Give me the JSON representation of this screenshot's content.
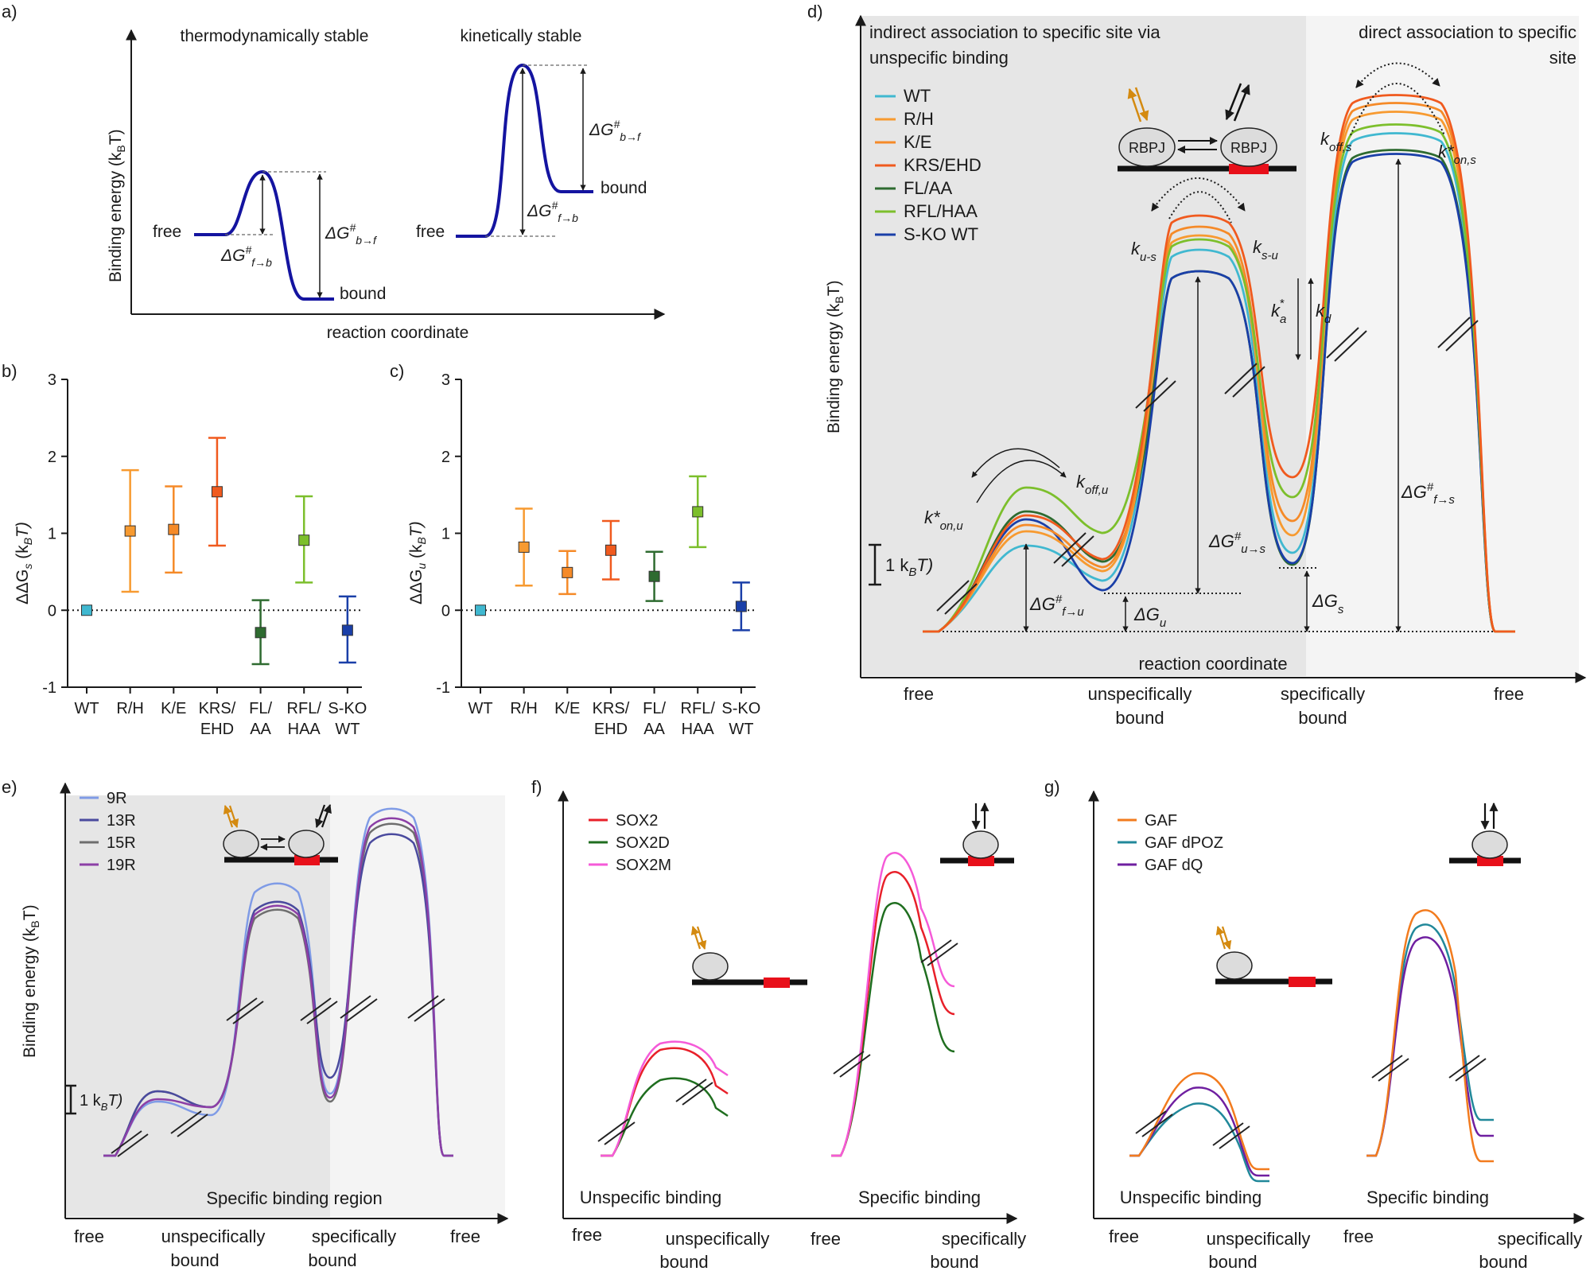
{
  "colors": {
    "navy": "#1414a0",
    "bg_gray": "#e6e6e6",
    "bg_light": "#f4f4f4",
    "WT": "#40b8d0",
    "R/H": "#f79a30",
    "K/E": "#f58a28",
    "KRS/EHD": "#f05a1e",
    "FL/AA": "#2e6b30",
    "RFL/HAA": "#7cbf2c",
    "S-KO WT": "#1a3fa8",
    "9R": "#7f9be6",
    "13R": "#4a4a9e",
    "15R": "#6e6e6e",
    "19R": "#8c3fa6",
    "SOX2": "#e8202a",
    "SOX2D": "#1f6e1f",
    "SOX2M": "#f55ad8",
    "GAF": "#f27b1e",
    "GAF dPOZ": "#21889a",
    "GAF dQ": "#6f1fa0"
  },
  "panel_a": {
    "letter": "a)",
    "ylabel": "Binding energy (k",
    "ylabel_sub": "B",
    "ylabel_end": "T)",
    "xlabel": "reaction coordinate",
    "left_title": "thermodynamically stable",
    "right_title": "kinetically stable",
    "free": "free",
    "bound": "bound",
    "dG_fb": "ΔG",
    "dG_sup": "#",
    "fb_sub": "f→b",
    "bf_sub": "b→f"
  },
  "chart_data": [
    {
      "panel": "b",
      "letter": "b)",
      "type": "scatter",
      "ylabel": "ΔΔG",
      "ylabel_sub": "s",
      "ylabel_end": " (k",
      "ylim": [
        -1,
        3
      ],
      "yticks": [
        "3",
        "2",
        "1",
        "0",
        "-1"
      ],
      "categories": [
        {
          "l1": "WT",
          "l2": ""
        },
        {
          "l1": "R/H",
          "l2": ""
        },
        {
          "l1": "K/E",
          "l2": ""
        },
        {
          "l1": "KRS/",
          "l2": "EHD"
        },
        {
          "l1": "FL/",
          "l2": "AA"
        },
        {
          "l1": "RFL/",
          "l2": "HAA"
        },
        {
          "l1": "S-KO",
          "l2": "WT"
        }
      ],
      "keys": [
        "WT",
        "R/H",
        "K/E",
        "KRS/EHD",
        "FL/AA",
        "RFL/HAA",
        "S-KO WT"
      ],
      "values": [
        0.0,
        1.03,
        1.05,
        1.54,
        -0.29,
        0.91,
        -0.26
      ],
      "err_low": [
        0.0,
        0.24,
        0.49,
        0.84,
        -0.7,
        0.36,
        -0.68
      ],
      "err_high": [
        0.0,
        1.82,
        1.61,
        2.24,
        0.13,
        1.48,
        0.18
      ]
    },
    {
      "panel": "c",
      "letter": "c)",
      "type": "scatter",
      "ylabel": "ΔΔG",
      "ylabel_sub": "u",
      "ylabel_end": " (k",
      "ylim": [
        -1,
        3
      ],
      "yticks": [
        "3",
        "2",
        "1",
        "0",
        "-1"
      ],
      "categories": [
        {
          "l1": "WT",
          "l2": ""
        },
        {
          "l1": "R/H",
          "l2": ""
        },
        {
          "l1": "K/E",
          "l2": ""
        },
        {
          "l1": "KRS/",
          "l2": "EHD"
        },
        {
          "l1": "FL/",
          "l2": "AA"
        },
        {
          "l1": "RFL/",
          "l2": "HAA"
        },
        {
          "l1": "S-KO",
          "l2": "WT"
        }
      ],
      "keys": [
        "WT",
        "R/H",
        "K/E",
        "KRS/EHD",
        "FL/AA",
        "RFL/HAA",
        "S-KO WT"
      ],
      "values": [
        0.0,
        0.82,
        0.49,
        0.78,
        0.44,
        1.28,
        0.05
      ],
      "err_low": [
        0.0,
        0.32,
        0.21,
        0.4,
        0.12,
        0.82,
        -0.26
      ],
      "err_high": [
        0.0,
        1.32,
        0.77,
        1.16,
        0.76,
        1.74,
        0.36
      ]
    }
  ],
  "panel_d": {
    "letter": "d)",
    "region_left_l1": "indirect association to specific site via",
    "region_left_l2": "unspecific binding",
    "region_right_l1": "direct association to specific",
    "region_right_l2": "site",
    "legend": [
      "WT",
      "R/H",
      "K/E",
      "KRS/EHD",
      "FL/AA",
      "RFL/HAA",
      "S-KO WT"
    ],
    "rbpj": "RBPJ",
    "ylabel": "Binding energy (k",
    "xlabel": "reaction coordinate",
    "x_free": "free",
    "x_unspec_l1": "unspecifically",
    "x_unspec_l2": "bound",
    "x_spec_l1": "specifically",
    "x_spec_l2": "bound",
    "x_free2": "free",
    "scale": "1 k",
    "k_on_u": "k*",
    "k_on_u_sub": "on,u",
    "k_off_u": "k",
    "k_off_u_sub": "off,u",
    "k_us": "k",
    "k_us_sub": "u-s",
    "k_su": "k",
    "k_su_sub": "s-u",
    "k_a": "k",
    "k_a_sub": "a",
    "k_d": "k",
    "k_d_sub": "d",
    "k_off_s": "k",
    "k_off_s_sub": "off,s",
    "k_on_s": "k*",
    "k_on_s_sub": "on,s",
    "dG_fu": "f→u",
    "dG_us": "u→s",
    "dG_fs": "f→s",
    "dG_u": "ΔG",
    "dG_u_sub": "u",
    "dG_s_sub": "s"
  },
  "panel_e": {
    "letter": "e)",
    "legend": [
      "9R",
      "13R",
      "15R",
      "19R"
    ],
    "ylabel": "Binding energy (k",
    "region": "Specific binding region",
    "x_free": "free",
    "x_unspec_l1": "unspecifically",
    "x_unspec_l2": "bound",
    "x_spec_l1": "specifically",
    "x_spec_l2": "bound",
    "x_free2": "free",
    "scale": "1 k"
  },
  "panel_f": {
    "letter": "f)",
    "legend": [
      "SOX2",
      "SOX2D",
      "SOX2M"
    ],
    "label_unspec": "Unspecific binding",
    "label_spec": "Specific binding",
    "x_free": "free",
    "x_unspec_l1": "unspecifically",
    "x_unspec_l2": "bound",
    "x_free2": "free",
    "x_spec_l1": "specifically",
    "x_spec_l2": "bound"
  },
  "panel_g": {
    "letter": "g)",
    "legend": [
      "GAF",
      "GAF dPOZ",
      "GAF dQ"
    ],
    "label_unspec": "Unspecific binding",
    "label_spec": "Specific binding",
    "x_free": "free",
    "x_unspec_l1": "unspecifically",
    "x_unspec_l2": "bound",
    "x_free2": "free",
    "x_spec_l1": "specifically",
    "x_spec_l2": "bound"
  }
}
